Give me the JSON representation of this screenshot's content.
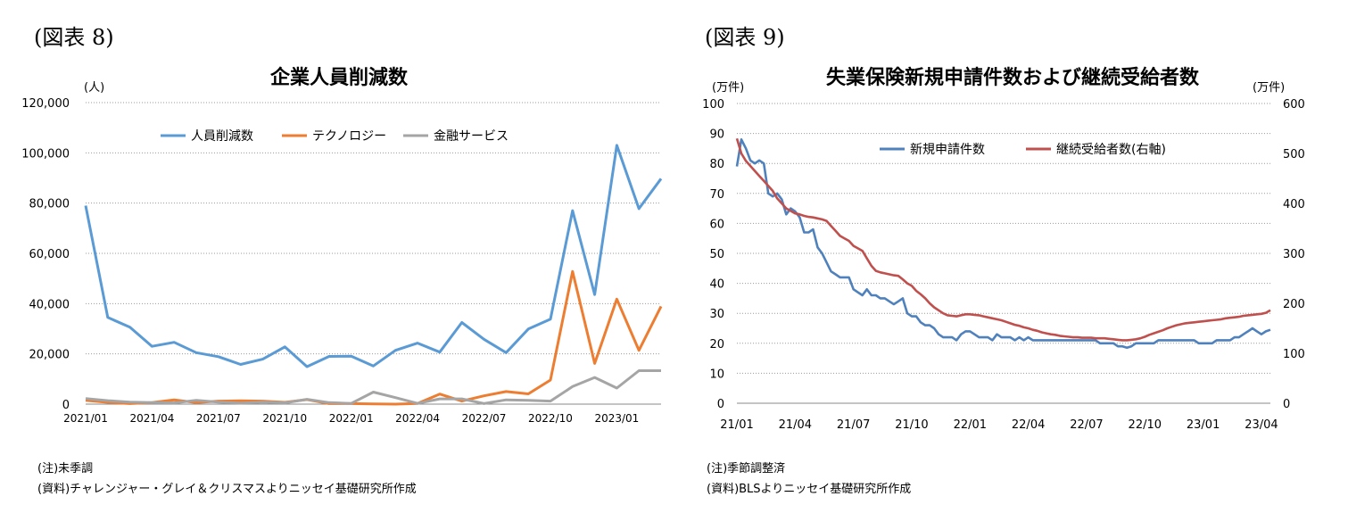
{
  "left": {
    "figure_label": "(図表 8)",
    "notes": [
      "(注)未季調",
      "(資料)チャレンジャー・グレイ＆クリスマスよりニッセイ基礎研究所作成"
    ]
  },
  "right": {
    "figure_label": "(図表 9)",
    "notes": [
      "(注)季節調整済",
      "(資料)BLSよりニッセイ基礎研究所作成"
    ]
  },
  "chart_data": [
    {
      "type": "line",
      "title": "企業人員削減数",
      "ylabel": "(人)",
      "ylim": [
        0,
        120000
      ],
      "yticks": [
        "0",
        "20,000",
        "40,000",
        "60,000",
        "80,000",
        "100,000",
        "120,000"
      ],
      "xtick_labels": [
        "2021/01",
        "2021/04",
        "2021/07",
        "2021/10",
        "2022/01",
        "2022/04",
        "2022/07",
        "2022/10",
        "2023/01"
      ],
      "grid": true,
      "legend": "top",
      "categories": [
        "2021/01",
        "2021/02",
        "2021/03",
        "2021/04",
        "2021/05",
        "2021/06",
        "2021/07",
        "2021/08",
        "2021/09",
        "2021/10",
        "2021/11",
        "2021/12",
        "2022/01",
        "2022/02",
        "2022/03",
        "2022/04",
        "2022/05",
        "2022/06",
        "2022/07",
        "2022/08",
        "2022/09",
        "2022/10",
        "2022/11",
        "2022/12",
        "2023/01",
        "2023/02",
        "2023/03"
      ],
      "series": [
        {
          "name": "人員削減数",
          "color": "#5b9bd5",
          "values": [
            79000,
            34500,
            30600,
            23000,
            24600,
            20500,
            18900,
            15800,
            17900,
            22800,
            14900,
            19000,
            19100,
            15200,
            21400,
            24300,
            20700,
            32500,
            25800,
            20500,
            29900,
            33800,
            77000,
            43600,
            103000,
            77800,
            89700
          ]
        },
        {
          "name": "テクノロジー",
          "color": "#ed7d31",
          "values": [
            1500,
            700,
            200,
            600,
            1700,
            600,
            1200,
            1300,
            1200,
            700,
            1800,
            200,
            200,
            100,
            0,
            300,
            4000,
            1200,
            3300,
            5000,
            4100,
            9600,
            52800,
            16200,
            41800,
            21400,
            38900
          ]
        },
        {
          "name": "金融サービス",
          "color": "#a5a5a5",
          "values": [
            2200,
            1400,
            800,
            600,
            500,
            1500,
            800,
            400,
            800,
            500,
            1900,
            600,
            300,
            4800,
            2600,
            300,
            2100,
            2100,
            200,
            1700,
            1500,
            1200,
            7000,
            10600,
            6400,
            13300,
            13300
          ]
        }
      ]
    },
    {
      "type": "line",
      "title": "失業保険新規申請件数および継続受給者数",
      "ylabel": "(万件)",
      "y2label": "(万件)",
      "ylim": [
        0,
        100
      ],
      "y2lim": [
        0,
        600
      ],
      "yticks": [
        "0",
        "10",
        "20",
        "30",
        "40",
        "50",
        "60",
        "70",
        "80",
        "90",
        "100"
      ],
      "y2ticks": [
        "0",
        "100",
        "200",
        "300",
        "400",
        "500",
        "600"
      ],
      "xtick_labels": [
        "21/01",
        "21/04",
        "21/07",
        "21/10",
        "22/01",
        "22/04",
        "22/07",
        "22/10",
        "23/01",
        "23/04"
      ],
      "grid": true,
      "legend": "top-right",
      "weeks": 120,
      "series": [
        {
          "name": "新規申請件数",
          "axis": "left",
          "color": "#4f81bd",
          "points": [
            [
              0,
              79
            ],
            [
              1,
              88
            ],
            [
              2,
              85
            ],
            [
              3,
              81
            ],
            [
              4,
              80
            ],
            [
              5,
              81
            ],
            [
              6,
              80
            ],
            [
              7,
              70
            ],
            [
              8,
              69
            ],
            [
              9,
              70
            ],
            [
              10,
              68
            ],
            [
              11,
              63
            ],
            [
              12,
              65
            ],
            [
              13,
              64
            ],
            [
              14,
              62
            ],
            [
              15,
              57
            ],
            [
              16,
              57
            ],
            [
              17,
              58
            ],
            [
              18,
              52
            ],
            [
              19,
              50
            ],
            [
              20,
              47
            ],
            [
              21,
              44
            ],
            [
              22,
              43
            ],
            [
              23,
              42
            ],
            [
              24,
              42
            ],
            [
              25,
              42
            ],
            [
              26,
              38
            ],
            [
              27,
              37
            ],
            [
              28,
              36
            ],
            [
              29,
              38
            ],
            [
              30,
              36
            ],
            [
              31,
              36
            ],
            [
              32,
              35
            ],
            [
              33,
              35
            ],
            [
              34,
              34
            ],
            [
              35,
              33
            ],
            [
              36,
              34
            ],
            [
              37,
              35
            ],
            [
              38,
              30
            ],
            [
              39,
              29
            ],
            [
              40,
              29
            ],
            [
              41,
              27
            ],
            [
              42,
              26
            ],
            [
              43,
              26
            ],
            [
              44,
              25
            ],
            [
              45,
              23
            ],
            [
              46,
              22
            ],
            [
              47,
              22
            ],
            [
              48,
              22
            ],
            [
              49,
              21
            ],
            [
              50,
              23
            ],
            [
              51,
              24
            ],
            [
              52,
              24
            ],
            [
              53,
              23
            ],
            [
              54,
              22
            ],
            [
              55,
              22
            ],
            [
              56,
              22
            ],
            [
              57,
              21
            ],
            [
              58,
              23
            ],
            [
              59,
              22
            ],
            [
              60,
              22
            ],
            [
              61,
              22
            ],
            [
              62,
              21
            ],
            [
              63,
              22
            ],
            [
              64,
              21
            ],
            [
              65,
              22
            ],
            [
              66,
              21
            ],
            [
              67,
              21
            ],
            [
              68,
              21
            ],
            [
              69,
              21
            ],
            [
              70,
              21
            ],
            [
              71,
              21
            ],
            [
              72,
              21
            ],
            [
              73,
              21
            ],
            [
              74,
              21
            ],
            [
              75,
              21
            ],
            [
              76,
              21
            ],
            [
              77,
              21
            ],
            [
              78,
              21
            ],
            [
              79,
              21
            ],
            [
              80,
              21
            ],
            [
              81,
              20
            ],
            [
              82,
              20
            ],
            [
              83,
              20
            ],
            [
              84,
              20
            ],
            [
              85,
              19
            ],
            [
              86,
              19
            ],
            [
              87,
              18.5
            ],
            [
              88,
              19
            ],
            [
              89,
              20
            ],
            [
              90,
              20
            ],
            [
              91,
              20
            ],
            [
              92,
              20
            ],
            [
              93,
              20
            ],
            [
              94,
              21
            ],
            [
              95,
              21
            ],
            [
              96,
              21
            ],
            [
              97,
              21
            ],
            [
              98,
              21
            ],
            [
              99,
              21
            ],
            [
              100,
              21
            ],
            [
              101,
              21
            ],
            [
              102,
              21
            ],
            [
              103,
              20
            ],
            [
              104,
              20
            ],
            [
              105,
              20
            ],
            [
              106,
              20
            ],
            [
              107,
              21
            ],
            [
              108,
              21
            ],
            [
              109,
              21
            ],
            [
              110,
              21
            ],
            [
              111,
              22
            ],
            [
              112,
              22
            ],
            [
              113,
              23
            ],
            [
              114,
              24
            ],
            [
              115,
              25
            ],
            [
              116,
              24
            ],
            [
              117,
              23
            ],
            [
              118,
              24
            ],
            [
              119,
              24.5
            ]
          ]
        },
        {
          "name": "継続受給者数(右軸)",
          "axis": "right",
          "color": "#c0504d",
          "points": [
            [
              0,
              530
            ],
            [
              1,
              500
            ],
            [
              2,
              485
            ],
            [
              3,
              475
            ],
            [
              4,
              465
            ],
            [
              5,
              455
            ],
            [
              6,
              445
            ],
            [
              7,
              435
            ],
            [
              8,
              425
            ],
            [
              9,
              410
            ],
            [
              10,
              400
            ],
            [
              11,
              390
            ],
            [
              12,
              385
            ],
            [
              13,
              380
            ],
            [
              14,
              378
            ],
            [
              15,
              375
            ],
            [
              16,
              373
            ],
            [
              17,
              372
            ],
            [
              18,
              370
            ],
            [
              19,
              368
            ],
            [
              20,
              365
            ],
            [
              21,
              355
            ],
            [
              22,
              345
            ],
            [
              23,
              335
            ],
            [
              24,
              330
            ],
            [
              25,
              325
            ],
            [
              26,
              315
            ],
            [
              27,
              310
            ],
            [
              28,
              305
            ],
            [
              29,
              290
            ],
            [
              30,
              275
            ],
            [
              31,
              265
            ],
            [
              32,
              262
            ],
            [
              33,
              260
            ],
            [
              34,
              258
            ],
            [
              35,
              256
            ],
            [
              36,
              255
            ],
            [
              37,
              248
            ],
            [
              38,
              240
            ],
            [
              39,
              235
            ],
            [
              40,
              225
            ],
            [
              41,
              218
            ],
            [
              42,
              210
            ],
            [
              43,
              200
            ],
            [
              44,
              192
            ],
            [
              45,
              186
            ],
            [
              46,
              180
            ],
            [
              47,
              176
            ],
            [
              48,
              175
            ],
            [
              49,
              174
            ],
            [
              50,
              176
            ],
            [
              51,
              178
            ],
            [
              52,
              178
            ],
            [
              53,
              177
            ],
            [
              54,
              176
            ],
            [
              55,
              174
            ],
            [
              56,
              172
            ],
            [
              57,
              170
            ],
            [
              58,
              168
            ],
            [
              59,
              166
            ],
            [
              60,
              163
            ],
            [
              61,
              160
            ],
            [
              62,
              157
            ],
            [
              63,
              155
            ],
            [
              64,
              152
            ],
            [
              65,
              150
            ],
            [
              66,
              147
            ],
            [
              67,
              145
            ],
            [
              68,
              142
            ],
            [
              69,
              140
            ],
            [
              70,
              138
            ],
            [
              71,
              137
            ],
            [
              72,
              135
            ],
            [
              73,
              134
            ],
            [
              74,
              133
            ],
            [
              75,
              132
            ],
            [
              76,
              132
            ],
            [
              77,
              131
            ],
            [
              78,
              131
            ],
            [
              79,
              131
            ],
            [
              80,
              130
            ],
            [
              81,
              130
            ],
            [
              82,
              130
            ],
            [
              83,
              129
            ],
            [
              84,
              128
            ],
            [
              85,
              127
            ],
            [
              86,
              126
            ],
            [
              87,
              126
            ],
            [
              88,
              127
            ],
            [
              89,
              128
            ],
            [
              90,
              130
            ],
            [
              91,
              133
            ],
            [
              92,
              137
            ],
            [
              93,
              140
            ],
            [
              94,
              143
            ],
            [
              95,
              146
            ],
            [
              96,
              150
            ],
            [
              97,
              153
            ],
            [
              98,
              156
            ],
            [
              99,
              158
            ],
            [
              100,
              160
            ],
            [
              101,
              161
            ],
            [
              102,
              162
            ],
            [
              103,
              163
            ],
            [
              104,
              164
            ],
            [
              105,
              165
            ],
            [
              106,
              166
            ],
            [
              107,
              167
            ],
            [
              108,
              168
            ],
            [
              109,
              170
            ],
            [
              110,
              171
            ],
            [
              111,
              172
            ],
            [
              112,
              173
            ],
            [
              113,
              175
            ],
            [
              114,
              176
            ],
            [
              115,
              177
            ],
            [
              116,
              178
            ],
            [
              117,
              179
            ],
            [
              118,
              181
            ],
            [
              119,
              186
            ]
          ]
        }
      ]
    }
  ]
}
